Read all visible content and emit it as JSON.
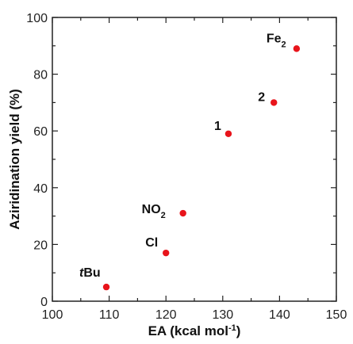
{
  "chart_data": {
    "type": "scatter",
    "xlabel": "EA (kcal mol",
    "xlabel_sup": "-1",
    "xlabel_end": ")",
    "ylabel": "Aziridination yield (%)",
    "xlim": [
      100,
      150
    ],
    "ylim": [
      0,
      100
    ],
    "xticks": [
      "100",
      "110",
      "120",
      "130",
      "140",
      "150"
    ],
    "yticks": [
      "0",
      "20",
      "40",
      "60",
      "80",
      "100"
    ],
    "grid": false,
    "marker_color": "#e8141b",
    "points": [
      {
        "x": 109.5,
        "y": 5,
        "label": "tBu",
        "label_italic": "t",
        "label_rest": "Bu",
        "sub": ""
      },
      {
        "x": 120,
        "y": 17,
        "label": "Cl",
        "label_italic": "",
        "label_rest": "Cl",
        "sub": ""
      },
      {
        "x": 123,
        "y": 31,
        "label": "NO2",
        "label_italic": "",
        "label_rest": "NO",
        "sub": "2"
      },
      {
        "x": 131,
        "y": 59,
        "label": "1",
        "label_italic": "",
        "label_rest": "1",
        "sub": ""
      },
      {
        "x": 139,
        "y": 70,
        "label": "2",
        "label_italic": "",
        "label_rest": "2",
        "sub": ""
      },
      {
        "x": 143,
        "y": 89,
        "label": "Fe2",
        "label_italic": "",
        "label_rest": "Fe",
        "sub": "2"
      }
    ]
  }
}
